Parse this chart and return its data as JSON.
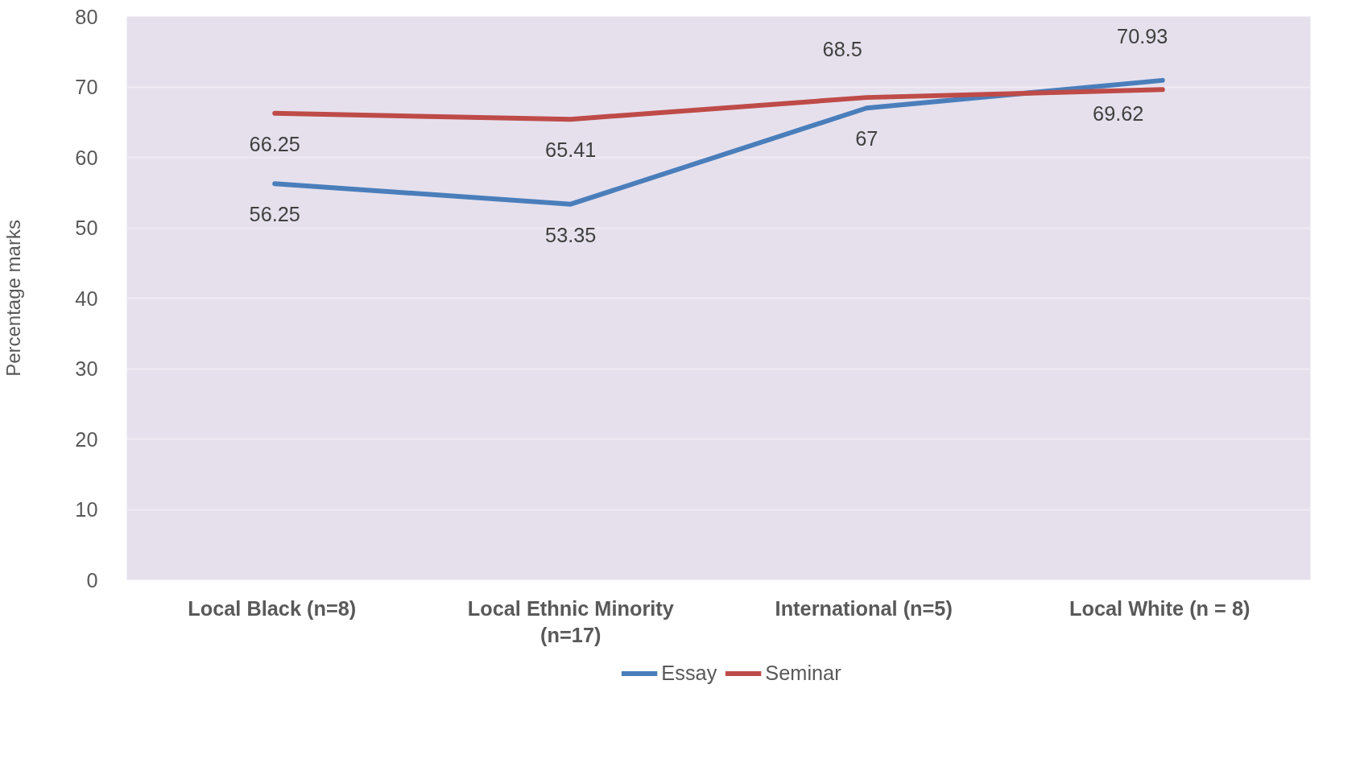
{
  "chart_data": {
    "type": "line",
    "ylabel": "Percentage marks",
    "categories": [
      "Local Black  (n=8)",
      "Local Ethnic Minority (n=17)",
      "International  (n=5)",
      "Local White  (n = 8)"
    ],
    "series": [
      {
        "name": "Essay",
        "color": "#4a7ebb",
        "values": [
          56.25,
          53.35,
          67,
          70.93
        ]
      },
      {
        "name": "Seminar",
        "color": "#be4b48",
        "values": [
          66.25,
          65.41,
          68.5,
          69.62
        ]
      }
    ],
    "ylim": [
      0,
      80
    ],
    "yticks": [
      0,
      10,
      20,
      30,
      40,
      50,
      60,
      70,
      80
    ],
    "grid": "y",
    "legend": "bottom",
    "data_labels": true,
    "marker": "none",
    "line_style": "solid"
  }
}
